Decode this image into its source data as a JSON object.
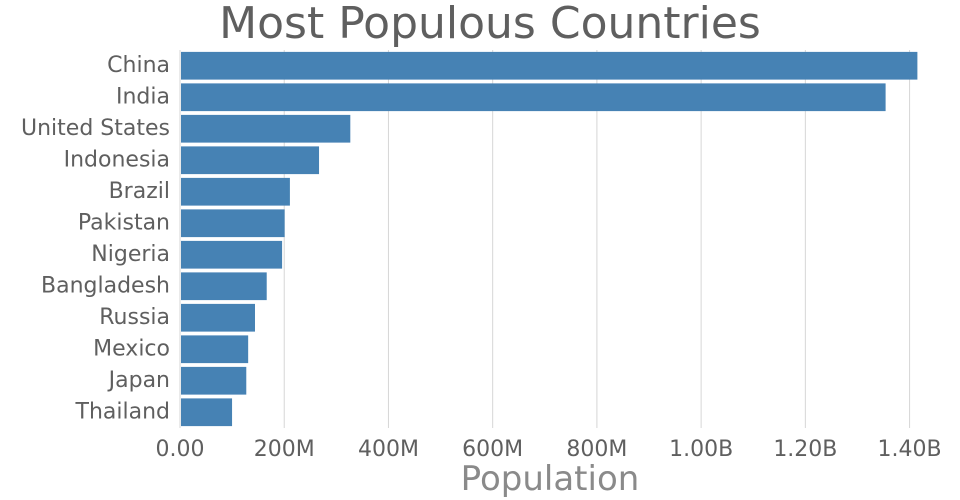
{
  "chart_data": {
    "type": "bar",
    "orientation": "horizontal",
    "title": "Most Populous Countries",
    "xlabel": "Population",
    "ylabel": "",
    "categories": [
      "China",
      "India",
      "United States",
      "Indonesia",
      "Brazil",
      "Pakistan",
      "Nigeria",
      "Bangladesh",
      "Russia",
      "Mexico",
      "Japan",
      "Thailand"
    ],
    "values": [
      1415000000,
      1354000000,
      326800000,
      266800000,
      210900000,
      200800000,
      195900000,
      166400000,
      143900000,
      130800000,
      127200000,
      99900000
    ],
    "xlim": [
      0,
      1420000000
    ],
    "xticks": [
      0,
      200000000,
      400000000,
      600000000,
      800000000,
      1000000000,
      1200000000,
      1400000000
    ],
    "xtick_labels": [
      "0.00",
      "200M",
      "400M",
      "600M",
      "800M",
      "1.00B",
      "1.20B",
      "1.40B"
    ],
    "grid": true,
    "legend": "none",
    "bar_color": "#4682b4"
  }
}
